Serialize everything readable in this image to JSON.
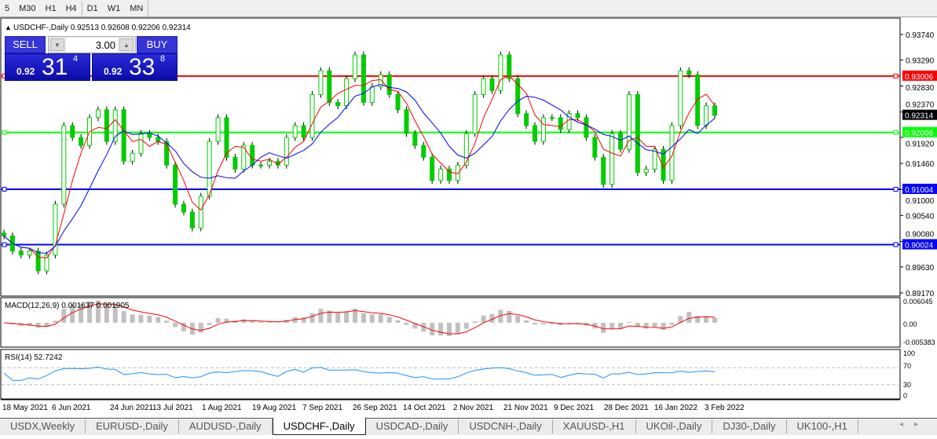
{
  "timeframes": [
    "5",
    "M30",
    "H1",
    "H4",
    "D1",
    "W1",
    "MN"
  ],
  "active_timeframe": "D1",
  "chart": {
    "title": "USDCHF-,Daily",
    "ohlc": "0.92513 0.92608 0.92206 0.92314",
    "price_labels": [
      "0.93740",
      "0.93290",
      "0.92830",
      "0.92370",
      "0.91920",
      "0.91460",
      "0.91000",
      "0.90540",
      "0.90080",
      "0.89630",
      "0.89170"
    ],
    "current_price": "0.92314",
    "hlines": [
      {
        "price": 0.93006,
        "label": "0.93006",
        "color": "#ff0000"
      },
      {
        "price": 0.92008,
        "label": "0.92008",
        "color": "#00ff00"
      },
      {
        "price": 0.91004,
        "label": "0.91004",
        "color": "#0000ff"
      },
      {
        "price": 0.90024,
        "label": "0.90024",
        "color": "#0000ff"
      }
    ]
  },
  "trade_panel": {
    "sell": "SELL",
    "buy": "BUY",
    "qty": "3.00",
    "bid_small": "0.92",
    "bid_big": "31",
    "bid_exp": "4",
    "ask_small": "0.92",
    "ask_big": "33",
    "ask_exp": "8"
  },
  "macd": {
    "label": "MACD(12,26,9) 0.001637 0.001905",
    "scale": [
      "0.006045",
      "0.00",
      "-0.005383"
    ]
  },
  "rsi": {
    "label": "RSI(14) 52.7242",
    "scale": [
      "100",
      "70",
      "30",
      "0"
    ]
  },
  "dates": [
    "18 May 2021",
    "6 Jun 2021",
    "24 Jun 2021",
    "13 Jul 2021",
    "1 Aug 2021",
    "19 Aug 2021",
    "7 Sep 2021",
    "26 Sep 2021",
    "14 Oct 2021",
    "2 Nov 2021",
    "21 Nov 2021",
    "9 Dec 2021",
    "28 Dec 2021",
    "16 Jan 2022",
    "3 Feb 2022"
  ],
  "tabs": [
    "USDX,Weekly",
    "EURUSD-,Daily",
    "AUDUSD-,Daily",
    "USDCHF-,Daily",
    "USDCAD-,Daily",
    "USDCNH-,Daily",
    "XAUUSD-,H1",
    "UKOil-,Daily",
    "DJ30-,Daily",
    "UK100-,H1"
  ],
  "active_tab": "USDCHF-,Daily",
  "colors": {
    "bull": "#00cc00",
    "bear": "#00cc00",
    "ma_fast": "#ff0000",
    "ma_slow": "#0000ff",
    "macd_hist": "#c0c0c0",
    "macd_signal": "#ff0000",
    "rsi": "#1e90ff"
  },
  "chart_data": {
    "type": "candlestick",
    "closes": [
      0.9018,
      0.8991,
      0.8984,
      0.8991,
      0.8956,
      0.8984,
      0.9074,
      0.9213,
      0.9192,
      0.9178,
      0.9227,
      0.9241,
      0.9185,
      0.9241,
      0.915,
      0.9164,
      0.9199,
      0.9192,
      0.9185,
      0.9143,
      0.9074,
      0.906,
      0.9032,
      0.9088,
      0.9185,
      0.9227,
      0.9157,
      0.9136,
      0.9178,
      0.9143,
      0.9143,
      0.915,
      0.9143,
      0.9192,
      0.9213,
      0.9192,
      0.9268,
      0.931,
      0.9254,
      0.9248,
      0.9296,
      0.9338,
      0.9254,
      0.9282,
      0.9303,
      0.9268,
      0.9241,
      0.9199,
      0.9178,
      0.9157,
      0.9116,
      0.9136,
      0.9116,
      0.9143,
      0.9199,
      0.9268,
      0.9296,
      0.9275,
      0.9338,
      0.9296,
      0.9234,
      0.9213,
      0.9185,
      0.9227,
      0.9227,
      0.9206,
      0.9234,
      0.9227,
      0.9192,
      0.9157,
      0.9109,
      0.9199,
      0.9171,
      0.9268,
      0.913,
      0.9136,
      0.9171,
      0.9116,
      0.9213,
      0.931,
      0.9303,
      0.9213,
      0.9248,
      0.9231
    ],
    "ylim": [
      0.8917,
      0.9374
    ]
  }
}
